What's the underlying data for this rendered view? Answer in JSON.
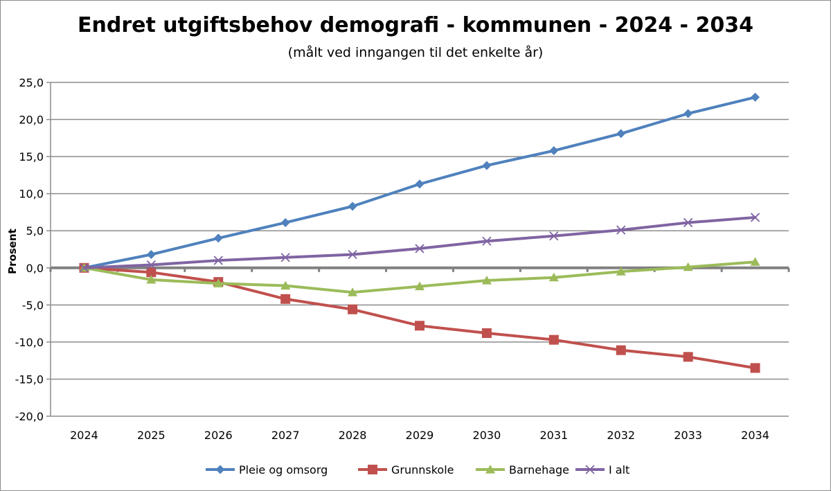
{
  "chart_data": {
    "type": "line",
    "title": "Endret utgiftsbehov demografi - kommunen - 2024 - 2034",
    "subtitle": "(målt ved inngangen til det enkelte år)",
    "xlabel": "",
    "ylabel": "Prosent",
    "categories": [
      "2024",
      "2025",
      "2026",
      "2027",
      "2028",
      "2029",
      "2030",
      "2031",
      "2032",
      "2033",
      "2034"
    ],
    "ylim": [
      -20,
      25
    ],
    "ytick_step": 5,
    "ytick_labels": [
      "25,0",
      "20,0",
      "15,0",
      "10,0",
      "5,0",
      "0,0",
      "-5,0",
      "-10,0",
      "-15,0",
      "-20,0"
    ],
    "grid": true,
    "legend_position": "bottom",
    "series": [
      {
        "name": "Pleie og omsorg",
        "color": "#4f81bd",
        "marker": "diamond",
        "values": [
          0,
          1.8,
          4.0,
          6.1,
          8.3,
          11.3,
          13.8,
          15.8,
          18.1,
          20.8,
          23.0
        ]
      },
      {
        "name": "Grunnskole",
        "color": "#c0504d",
        "marker": "square",
        "values": [
          0,
          -0.6,
          -1.9,
          -4.2,
          -5.6,
          -7.8,
          -8.8,
          -9.7,
          -11.1,
          -12.0,
          -13.5
        ]
      },
      {
        "name": "Barnehage",
        "color": "#9bbb59",
        "marker": "triangle",
        "values": [
          0,
          -1.6,
          -2.1,
          -2.4,
          -3.3,
          -2.5,
          -1.7,
          -1.3,
          -0.5,
          0.1,
          0.8
        ]
      },
      {
        "name": "I alt",
        "color": "#8064a2",
        "marker": "x",
        "values": [
          0,
          0.4,
          1.0,
          1.4,
          1.8,
          2.6,
          3.6,
          4.3,
          5.1,
          6.1,
          6.8
        ]
      }
    ]
  }
}
